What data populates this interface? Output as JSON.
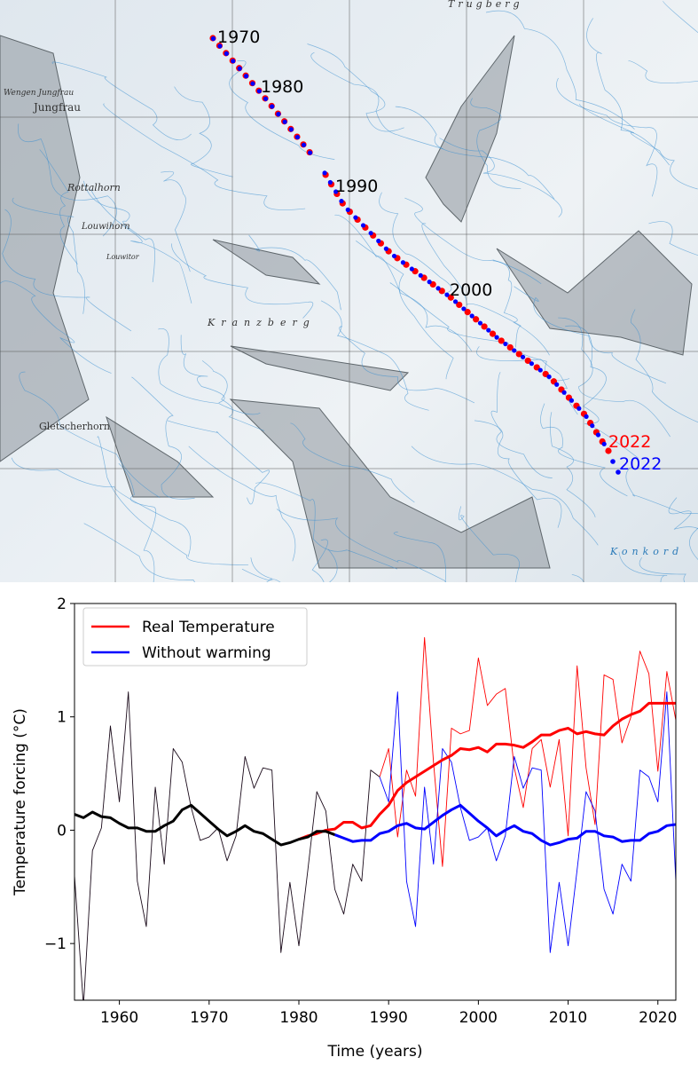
{
  "map": {
    "place_labels": [
      "Trugberg",
      "Wengen Jungfrau",
      "Jungfrau",
      "Rottalhorn",
      "Louwihorn",
      "Louwitor",
      "Kranzberg",
      "Gletscherhorn",
      "Konkord"
    ],
    "year_labels": [
      {
        "text": "1970",
        "color": "#000000"
      },
      {
        "text": "1980",
        "color": "#000000"
      },
      {
        "text": "1990",
        "color": "#000000"
      },
      {
        "text": "2000",
        "color": "#000000"
      },
      {
        "text": "2022",
        "color": "#ff0000"
      },
      {
        "text": "2022",
        "color": "#0000ff"
      }
    ],
    "trajectory_colors": {
      "real": "#ff0000",
      "without_warming": "#0000ff"
    }
  },
  "chart_data": {
    "type": "line",
    "xlabel": "Time (years)",
    "ylabel": "Temperature forcing (°C)",
    "xlim": [
      1955,
      2022
    ],
    "ylim": [
      -1.5,
      2
    ],
    "xticks": [
      1960,
      1970,
      1980,
      1990,
      2000,
      2010,
      2020
    ],
    "yticks": [
      {
        "v": 2,
        "label": "2"
      },
      {
        "v": 1,
        "label": "1"
      },
      {
        "v": 0,
        "label": "0"
      },
      {
        "v": -1,
        "label": "−1"
      }
    ],
    "grid": false,
    "legend_position": "top-left",
    "legend": [
      {
        "name": "Real Temperature",
        "color": "#ff0000"
      },
      {
        "name": "Without warming",
        "color": "#0000ff"
      }
    ],
    "series": [
      {
        "id": "shared_annual",
        "color": "#1a0a1a",
        "start": 1955,
        "values": [
          -0.4,
          -1.55,
          -0.18,
          0.02,
          0.92,
          0.25,
          1.22,
          -0.45,
          -0.85,
          0.38,
          -0.3,
          0.72,
          0.6,
          0.2,
          -0.09,
          -0.06,
          0.02,
          -0.27,
          -0.05,
          0.65,
          0.37,
          0.55,
          0.53,
          -1.08,
          -0.46,
          -1.02,
          -0.35,
          0.34,
          0.17,
          -0.52,
          -0.74,
          -0.3,
          -0.45,
          0.53,
          0.47
        ]
      },
      {
        "id": "shared_smoothed",
        "color": "#000000",
        "start": 1955,
        "values": [
          0.14,
          0.11,
          0.16,
          0.12,
          0.11,
          0.06,
          0.02,
          0.02,
          -0.01,
          -0.01,
          0.04,
          0.08,
          0.18,
          0.22,
          0.15,
          0.08,
          0.01,
          -0.05,
          -0.01,
          0.04,
          -0.01,
          -0.03,
          -0.08,
          -0.13,
          -0.11,
          -0.08,
          -0.06,
          -0.01,
          -0.01,
          -0.04
        ]
      },
      {
        "name": "Real Temperature",
        "id": "real_annual",
        "color": "#ff0000",
        "start": 1989,
        "values": [
          0.47,
          0.72,
          -0.06,
          0.53,
          0.3,
          1.7,
          0.6,
          -0.32,
          0.9,
          0.85,
          0.88,
          1.52,
          1.1,
          1.2,
          1.25,
          0.55,
          0.2,
          0.72,
          0.8,
          0.38,
          0.8,
          -0.05,
          1.45,
          0.55,
          0.05,
          1.37,
          1.33,
          0.77,
          1.0,
          1.58,
          1.38,
          0.52,
          1.4,
          0.97
        ]
      },
      {
        "name": "Real Temperature",
        "id": "real_smoothed",
        "color": "#ff0000",
        "start": 1980,
        "values": [
          -0.08,
          -0.05,
          -0.03,
          0,
          0.01,
          0.07,
          0.07,
          0.02,
          0.04,
          0.14,
          0.22,
          0.35,
          0.42,
          0.47,
          0.52,
          0.57,
          0.62,
          0.66,
          0.72,
          0.71,
          0.73,
          0.69,
          0.76,
          0.76,
          0.75,
          0.73,
          0.78,
          0.84,
          0.84,
          0.88,
          0.9,
          0.85,
          0.87,
          0.85,
          0.84,
          0.92,
          0.98,
          1.02,
          1.05,
          1.12,
          1.12,
          1.12,
          1.12
        ]
      },
      {
        "name": "Without warming",
        "id": "nowarm_annual",
        "color": "#0000ff",
        "start": 1989,
        "values": [
          0.47,
          0.25,
          1.22,
          -0.45,
          -0.85,
          0.38,
          -0.3,
          0.72,
          0.6,
          0.2,
          -0.09,
          -0.06,
          0.02,
          -0.27,
          -0.05,
          0.65,
          0.37,
          0.55,
          0.53,
          -1.08,
          -0.46,
          -1.02,
          -0.35,
          0.34,
          0.17,
          -0.52,
          -0.74,
          -0.3,
          -0.45,
          0.53,
          0.47,
          0.25,
          1.22,
          -0.45
        ]
      },
      {
        "name": "Without warming",
        "id": "nowarm_smoothed",
        "color": "#0000ff",
        "start": 1984,
        "values": [
          -0.04,
          -0.07,
          -0.1,
          -0.09,
          -0.09,
          -0.03,
          -0.01,
          0.04,
          0.06,
          0.02,
          0.01,
          0.07,
          0.13,
          0.18,
          0.22,
          0.15,
          0.08,
          0.02,
          -0.05,
          0,
          0.04,
          -0.01,
          -0.03,
          -0.09,
          -0.13,
          -0.11,
          -0.08,
          -0.07,
          -0.01,
          -0.01,
          -0.05,
          -0.06,
          -0.1,
          -0.09,
          -0.09,
          -0.03,
          -0.01,
          0.04,
          0.05
        ]
      }
    ]
  }
}
